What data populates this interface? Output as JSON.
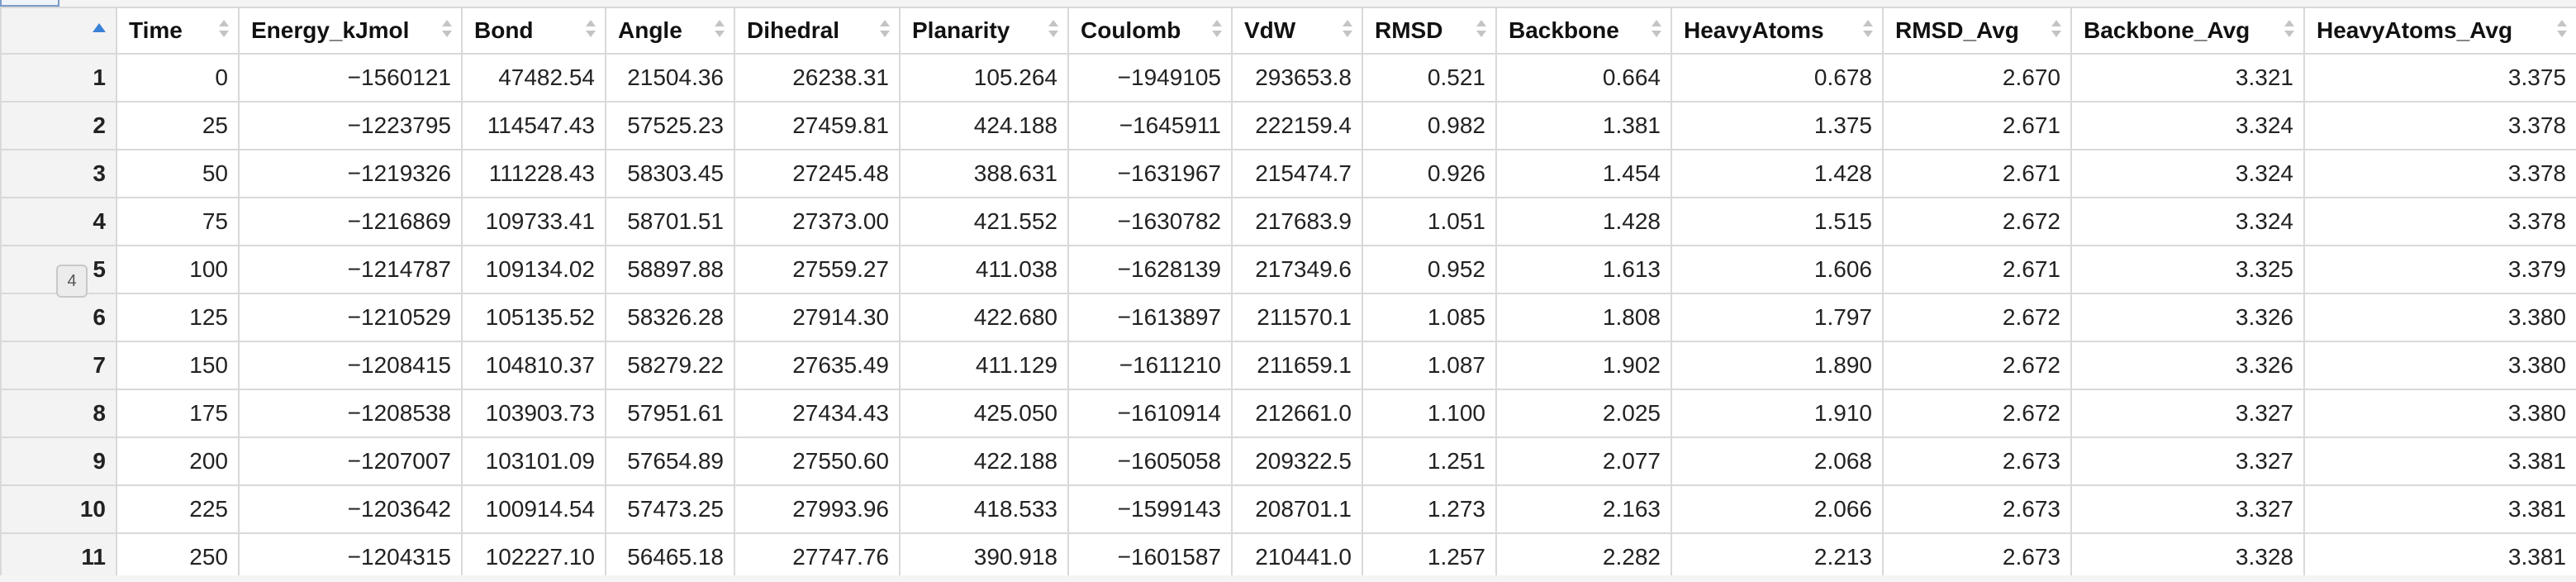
{
  "table": {
    "columns": [
      "Time",
      "Energy_kJmol",
      "Bond",
      "Angle",
      "Dihedral",
      "Planarity",
      "Coulomb",
      "VdW",
      "RMSD",
      "Backbone",
      "HeavyAtoms",
      "RMSD_Avg",
      "Backbone_Avg",
      "HeavyAtoms_Avg"
    ],
    "rows": [
      [
        "1",
        "0",
        "−1560121",
        "47482.54",
        "21504.36",
        "26238.31",
        "105.264",
        "−1949105",
        "293653.8",
        "0.521",
        "0.664",
        "0.678",
        "2.670",
        "3.321",
        "3.375"
      ],
      [
        "2",
        "25",
        "−1223795",
        "114547.43",
        "57525.23",
        "27459.81",
        "424.188",
        "−1645911",
        "222159.4",
        "0.982",
        "1.381",
        "1.375",
        "2.671",
        "3.324",
        "3.378"
      ],
      [
        "3",
        "50",
        "−1219326",
        "111228.43",
        "58303.45",
        "27245.48",
        "388.631",
        "−1631967",
        "215474.7",
        "0.926",
        "1.454",
        "1.428",
        "2.671",
        "3.324",
        "3.378"
      ],
      [
        "4",
        "75",
        "−1216869",
        "109733.41",
        "58701.51",
        "27373.00",
        "421.552",
        "−1630782",
        "217683.9",
        "1.051",
        "1.428",
        "1.515",
        "2.672",
        "3.324",
        "3.378"
      ],
      [
        "5",
        "100",
        "−1214787",
        "109134.02",
        "58897.88",
        "27559.27",
        "411.038",
        "−1628139",
        "217349.6",
        "0.952",
        "1.613",
        "1.606",
        "2.671",
        "3.325",
        "3.379"
      ],
      [
        "6",
        "125",
        "−1210529",
        "105135.52",
        "58326.28",
        "27914.30",
        "422.680",
        "−1613897",
        "211570.1",
        "1.085",
        "1.808",
        "1.797",
        "2.672",
        "3.326",
        "3.380"
      ],
      [
        "7",
        "150",
        "−1208415",
        "104810.37",
        "58279.22",
        "27635.49",
        "411.129",
        "−1611210",
        "211659.1",
        "1.087",
        "1.902",
        "1.890",
        "2.672",
        "3.326",
        "3.380"
      ],
      [
        "8",
        "175",
        "−1208538",
        "103903.73",
        "57951.61",
        "27434.43",
        "425.050",
        "−1610914",
        "212661.0",
        "1.100",
        "2.025",
        "1.910",
        "2.672",
        "3.327",
        "3.380"
      ],
      [
        "9",
        "200",
        "−1207007",
        "103101.09",
        "57654.89",
        "27550.60",
        "422.188",
        "−1605058",
        "209322.5",
        "1.251",
        "2.077",
        "2.068",
        "2.673",
        "3.327",
        "3.381"
      ],
      [
        "10",
        "225",
        "−1203642",
        "100914.54",
        "57473.25",
        "27993.96",
        "418.533",
        "−1599143",
        "208701.1",
        "1.273",
        "2.163",
        "2.066",
        "2.673",
        "3.327",
        "3.381"
      ],
      [
        "11",
        "250",
        "−1204315",
        "102227.10",
        "56465.18",
        "27747.76",
        "390.918",
        "−1601587",
        "210441.0",
        "1.257",
        "2.282",
        "2.213",
        "2.673",
        "3.328",
        "3.381"
      ]
    ]
  },
  "side_marker": "4",
  "colors": {
    "sort_active": "#3b82d6",
    "grid_line": "#d9d9d9",
    "row_header_bg": "#f3f3f3"
  }
}
